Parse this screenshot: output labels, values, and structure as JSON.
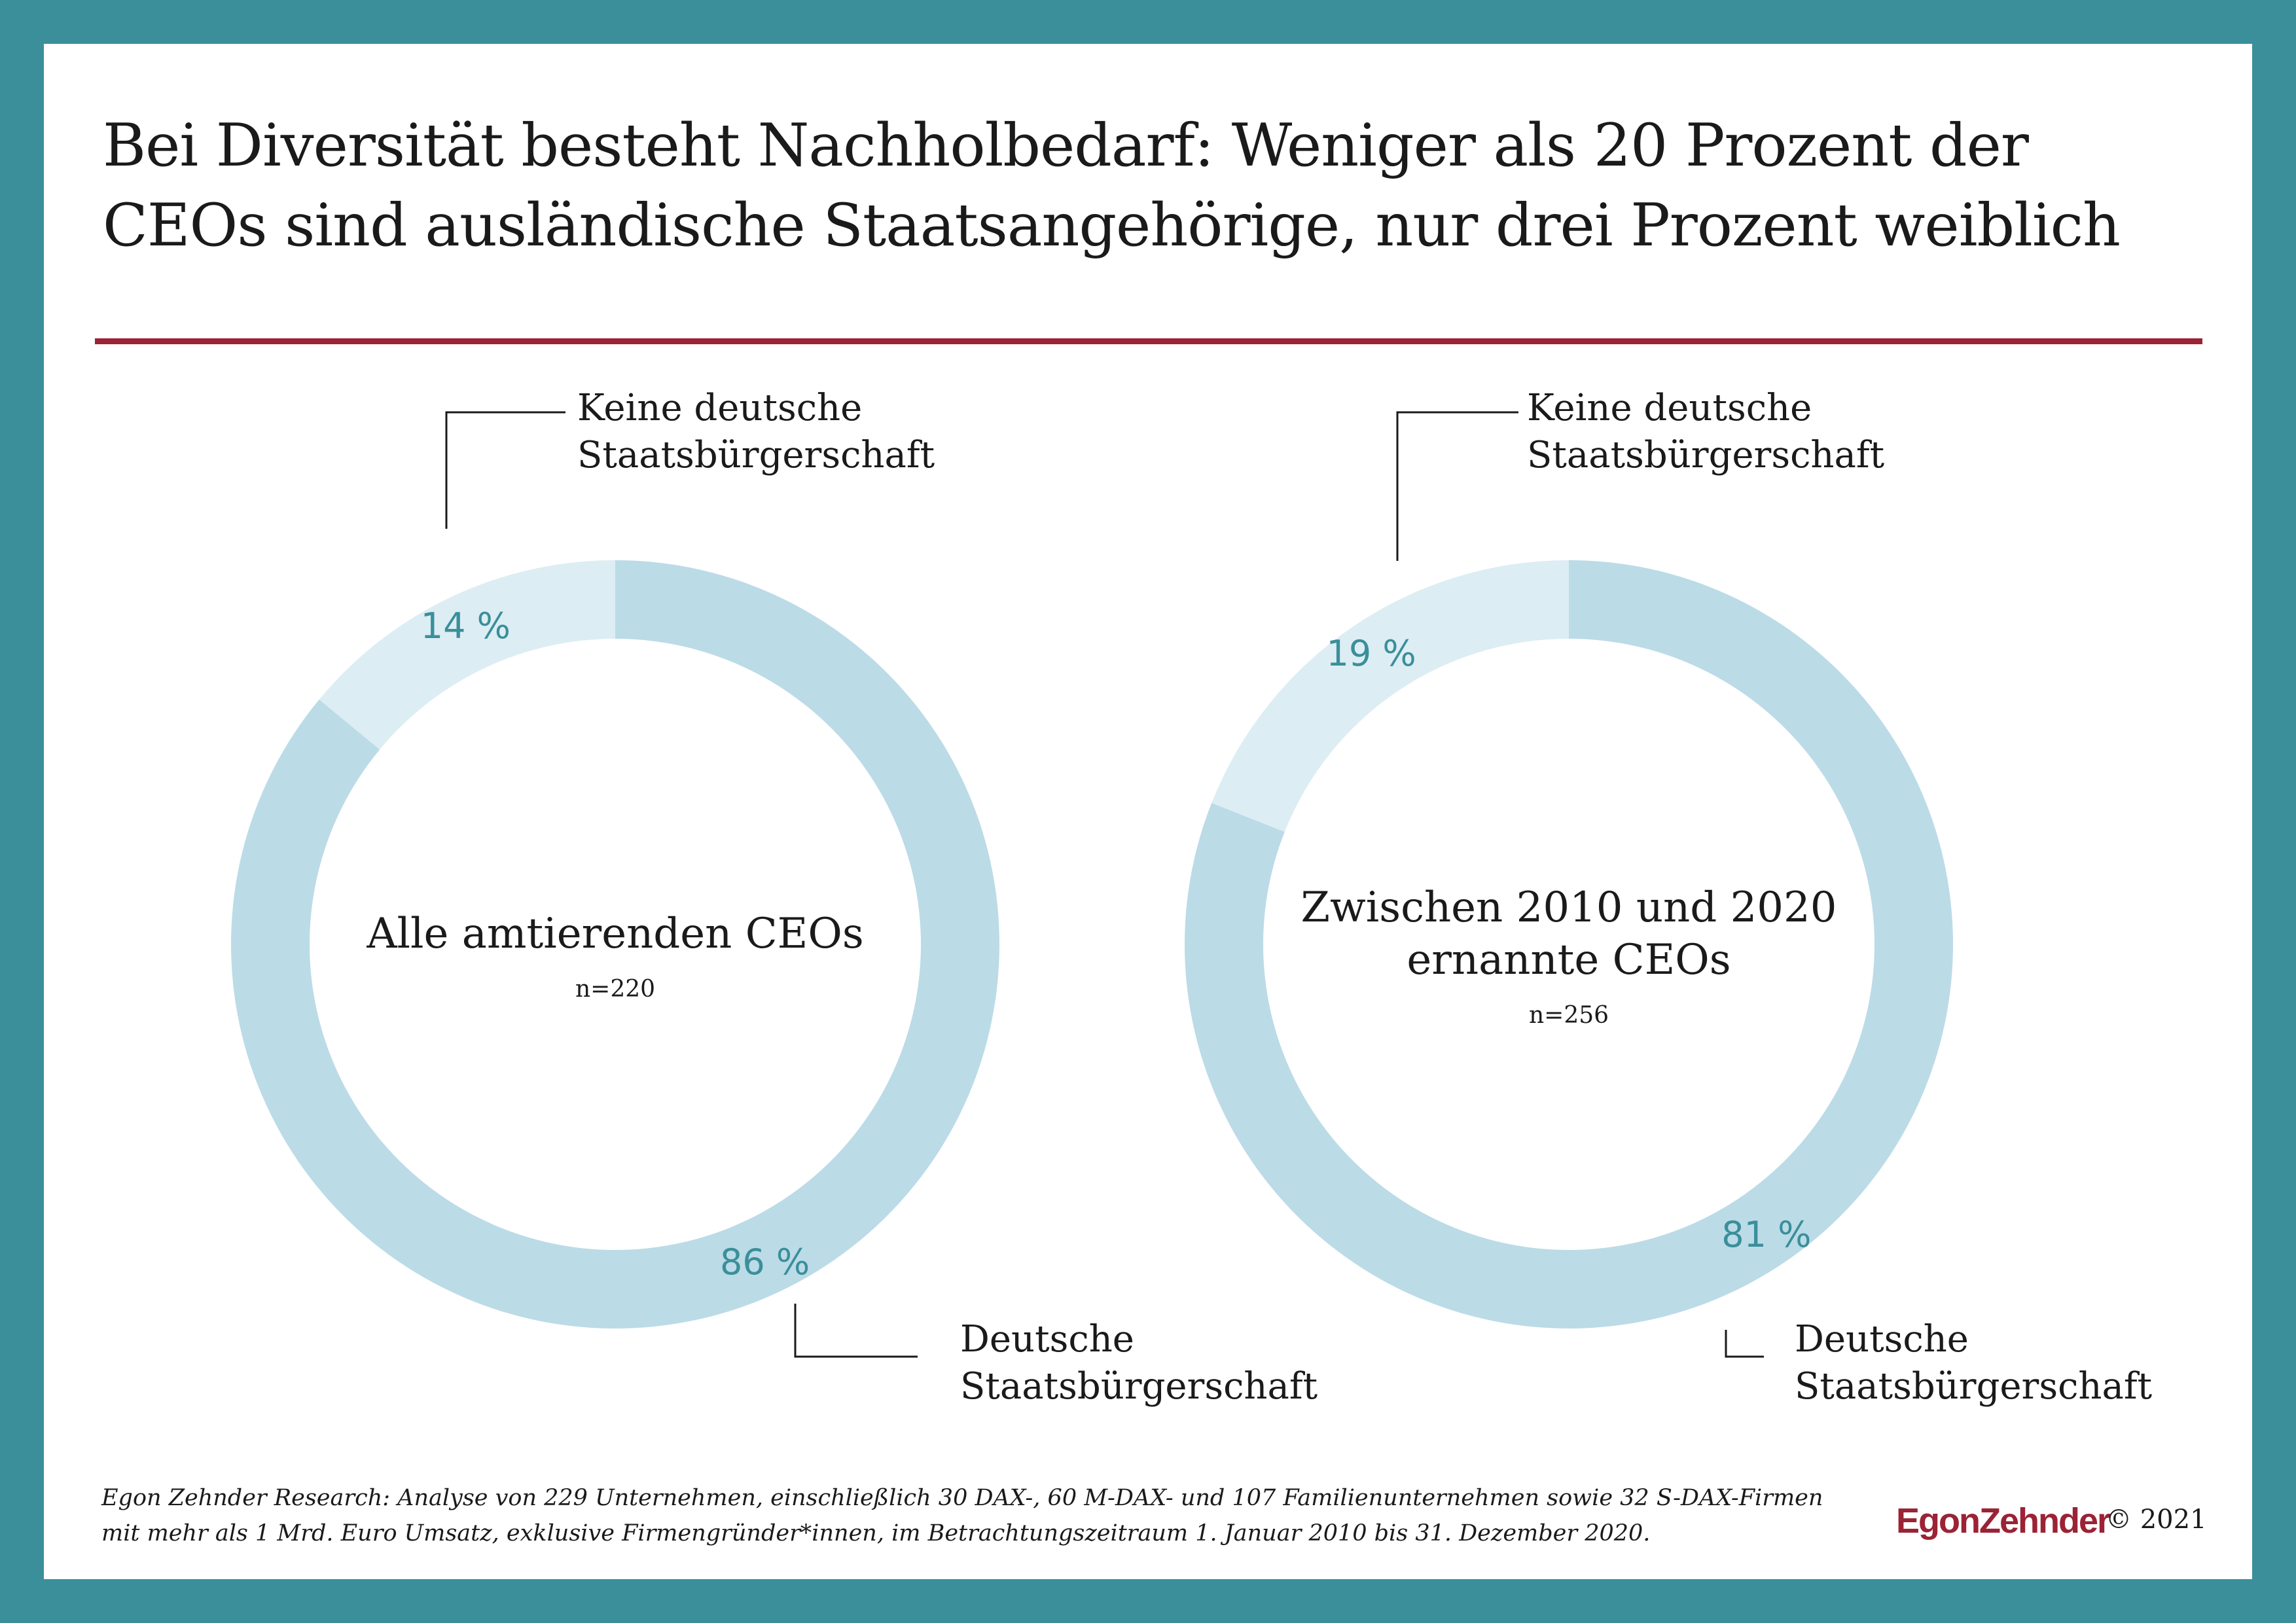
{
  "title": {
    "line1": "Bei Diversität besteht Nachholbedarf: Weniger als 20 Prozent der",
    "line2": "CEOs sind ausländische Staatsangehörige, nur drei Prozent weiblich"
  },
  "colors": {
    "frame": "#3a8f9a",
    "rule": "#9b2335",
    "segment_german": "#bbdbe7",
    "segment_foreign": "#ddedf4",
    "percent_text": "#3a8f9a",
    "brand": "#9b2335"
  },
  "chart_data": [
    {
      "type": "pie",
      "variant": "donut",
      "center_title": [
        "Alle amtierenden CEOs"
      ],
      "center_n": "n=220",
      "slices": [
        {
          "label_lines": [
            "Keine deutsche",
            "Staatsbürgerschaft"
          ],
          "value": 14,
          "display": "14 %"
        },
        {
          "label_lines": [
            "Deutsche",
            "Staatsbürgerschaft"
          ],
          "value": 86,
          "display": "86 %"
        }
      ]
    },
    {
      "type": "pie",
      "variant": "donut",
      "center_title": [
        "Zwischen 2010 und 2020",
        "ernannte CEOs"
      ],
      "center_n": "n=256",
      "slices": [
        {
          "label_lines": [
            "Keine deutsche",
            "Staatsbürgerschaft"
          ],
          "value": 19,
          "display": "19 %"
        },
        {
          "label_lines": [
            "Deutsche",
            "Staatsbürgerschaft"
          ],
          "value": 81,
          "display": "81 %"
        }
      ]
    }
  ],
  "footnote": {
    "line1": "Egon Zehnder Research: Analyse von 229 Unternehmen, einschließlich 30 DAX-, 60 M-DAX- und 107 Familienunternehmen sowie 32 S-DAX-Firmen",
    "line2": "mit mehr als 1 Mrd. Euro Umsatz, exklusive Firmengründer*innen, im Betrachtungszeitraum 1. Januar 2010 bis 31. Dezember 2020."
  },
  "brand": {
    "logo": "EgonZehnder",
    "copyright": "© 2021"
  }
}
